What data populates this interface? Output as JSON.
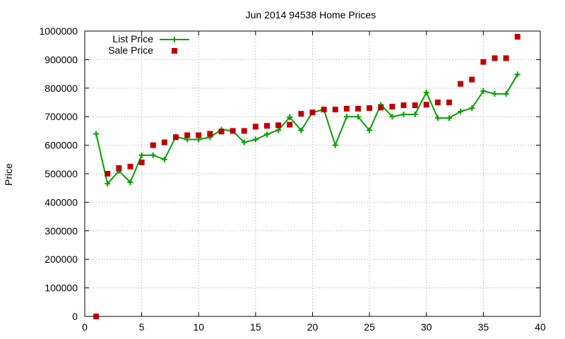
{
  "chart_data": {
    "type": "line",
    "title": "Jun 2014 94538 Home Prices",
    "xlabel": "",
    "ylabel": "Price",
    "xlim": [
      0,
      40
    ],
    "ylim": [
      0,
      1000000
    ],
    "x_ticks": [
      0,
      5,
      10,
      15,
      20,
      25,
      30,
      35,
      40
    ],
    "y_ticks": [
      0,
      100000,
      200000,
      300000,
      400000,
      500000,
      600000,
      700000,
      800000,
      900000,
      1000000
    ],
    "grid": true,
    "legend_position": "top-left",
    "series": [
      {
        "name": "List Price",
        "style": "line-with-plus-markers",
        "color": "#00a000",
        "x": [
          1,
          2,
          3,
          4,
          5,
          6,
          7,
          8,
          9,
          10,
          11,
          12,
          13,
          14,
          15,
          16,
          17,
          18,
          19,
          20,
          21,
          22,
          23,
          24,
          25,
          26,
          27,
          28,
          29,
          30,
          31,
          32,
          33,
          34,
          35,
          36,
          37,
          38
        ],
        "y": [
          640000,
          465000,
          510000,
          470000,
          565000,
          565000,
          550000,
          630000,
          620000,
          620000,
          628000,
          655000,
          650000,
          610000,
          620000,
          638000,
          653000,
          698000,
          652000,
          715000,
          725000,
          600000,
          700000,
          700000,
          652000,
          742000,
          700000,
          708000,
          708000,
          785000,
          695000,
          695000,
          718000,
          730000,
          790000,
          780000,
          780000,
          848000
        ]
      },
      {
        "name": "Sale Price",
        "style": "square-markers",
        "color": "#c00000",
        "x": [
          1,
          2,
          3,
          4,
          5,
          6,
          7,
          8,
          9,
          10,
          11,
          12,
          13,
          14,
          15,
          16,
          17,
          18,
          19,
          20,
          21,
          22,
          23,
          24,
          25,
          26,
          27,
          28,
          29,
          30,
          31,
          32,
          33,
          34,
          35,
          36,
          37,
          38
        ],
        "y": [
          0,
          500000,
          520000,
          525000,
          540000,
          600000,
          610000,
          628000,
          635000,
          635000,
          640000,
          648000,
          650000,
          650000,
          665000,
          668000,
          670000,
          672000,
          710000,
          715000,
          725000,
          725000,
          728000,
          728000,
          730000,
          732000,
          735000,
          740000,
          740000,
          742000,
          750000,
          750000,
          815000,
          830000,
          892000,
          905000,
          905000,
          980000
        ]
      }
    ]
  }
}
